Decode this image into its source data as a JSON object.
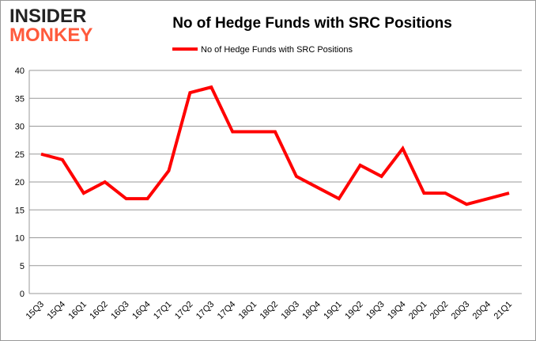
{
  "logo": {
    "line1": "INSIDER",
    "line2": "MONKEY"
  },
  "chart_data": {
    "type": "line",
    "title": "No of Hedge Funds with SRC Positions",
    "categories": [
      "15Q3",
      "15Q4",
      "16Q1",
      "16Q2",
      "16Q3",
      "16Q4",
      "17Q1",
      "17Q2",
      "17Q3",
      "17Q4",
      "18Q1",
      "18Q2",
      "18Q3",
      "18Q4",
      "19Q1",
      "19Q2",
      "19Q3",
      "19Q4",
      "20Q1",
      "20Q2",
      "20Q3",
      "20Q4",
      "21Q1"
    ],
    "series": [
      {
        "name": "No of Hedge Funds with SRC Positions",
        "values": [
          25,
          24,
          18,
          20,
          17,
          17,
          22,
          36,
          37,
          29,
          29,
          29,
          21,
          19,
          17,
          23,
          21,
          26,
          18,
          18,
          16,
          17,
          18
        ],
        "color": "#ff0000"
      }
    ],
    "ylim": [
      0,
      40
    ],
    "yticks": [
      0,
      5,
      10,
      15,
      20,
      25,
      30,
      35,
      40
    ],
    "grid": true,
    "legend": "top-center",
    "xlabel": "",
    "ylabel": ""
  }
}
